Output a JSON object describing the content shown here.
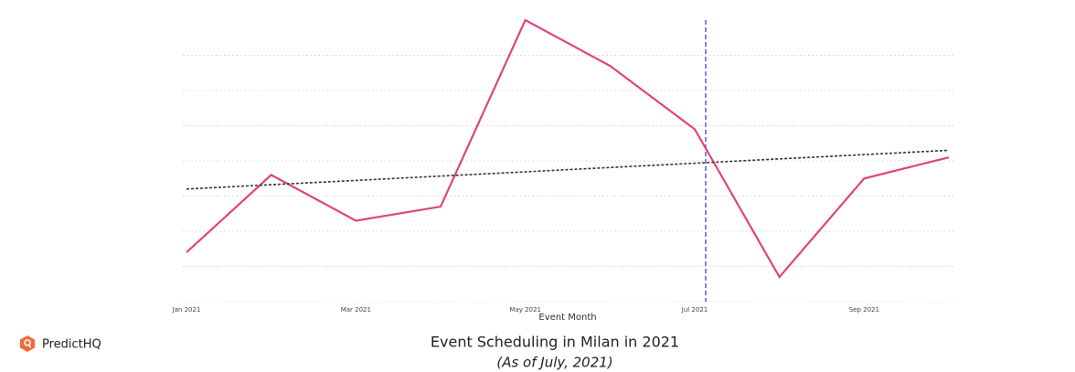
{
  "chart_data": {
    "type": "line",
    "title": "Event Scheduling in Milan in 2021",
    "subtitle": "(As of July, 2021)",
    "x_label": "Event Month",
    "brand": "PredictHQ",
    "categories": [
      "Jan 2021",
      null,
      "Mar 2021",
      null,
      "May 2021",
      null,
      "Jul 2021",
      null,
      "Sep 2021",
      null
    ],
    "series": [
      {
        "color": "#e0447d",
        "values": [
          1.4,
          3.6,
          2.3,
          2.7,
          8.0,
          6.7,
          4.9,
          0.7,
          3.5,
          4.1
        ]
      }
    ],
    "trend": {
      "start": 3.2,
      "end": 4.3,
      "color": "#333333"
    },
    "vline_index": 6,
    "vline_color": "#8a7cf0",
    "ylim": [
      0,
      8
    ],
    "yticks": [
      1,
      2,
      3,
      4,
      5,
      6,
      7
    ],
    "grid": true
  }
}
